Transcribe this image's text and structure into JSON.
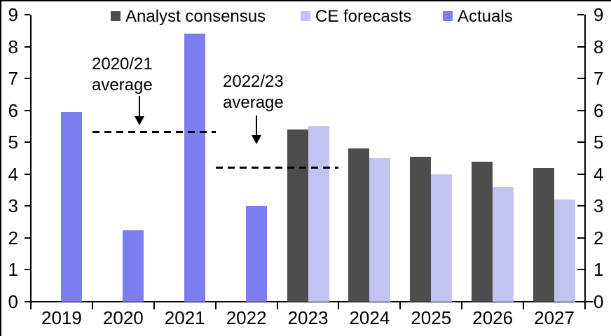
{
  "chart_data": {
    "type": "bar",
    "title": "",
    "categories": [
      "2019",
      "2020",
      "2021",
      "2022",
      "2023",
      "2024",
      "2025",
      "2026",
      "2027"
    ],
    "series": [
      {
        "name": "Analyst consensus",
        "color": "#4d4d4d",
        "values": [
          null,
          null,
          null,
          null,
          5.4,
          4.8,
          4.55,
          4.4,
          4.2
        ]
      },
      {
        "name": "CE forecasts",
        "color": "#c3c3f2",
        "values": [
          null,
          null,
          null,
          null,
          5.5,
          4.5,
          4.0,
          3.6,
          3.2
        ]
      },
      {
        "name": "Actuals",
        "color": "#7d7df2",
        "values": [
          5.95,
          2.25,
          8.4,
          3.0,
          null,
          null,
          null,
          null,
          null
        ]
      }
    ],
    "ylim": [
      0,
      9
    ],
    "yticks": [
      0,
      1,
      2,
      3,
      4,
      5,
      6,
      7,
      8,
      9
    ],
    "dual_y_axis": true,
    "grid": false,
    "legend_position": "top",
    "annotations": [
      {
        "label": "2020/21\naverage",
        "value": 5.33,
        "from_category": "2020",
        "to_category": "2021"
      },
      {
        "label": "2022/23\naverage",
        "value": 4.2,
        "from_category": "2022",
        "to_category": "2023"
      }
    ]
  }
}
